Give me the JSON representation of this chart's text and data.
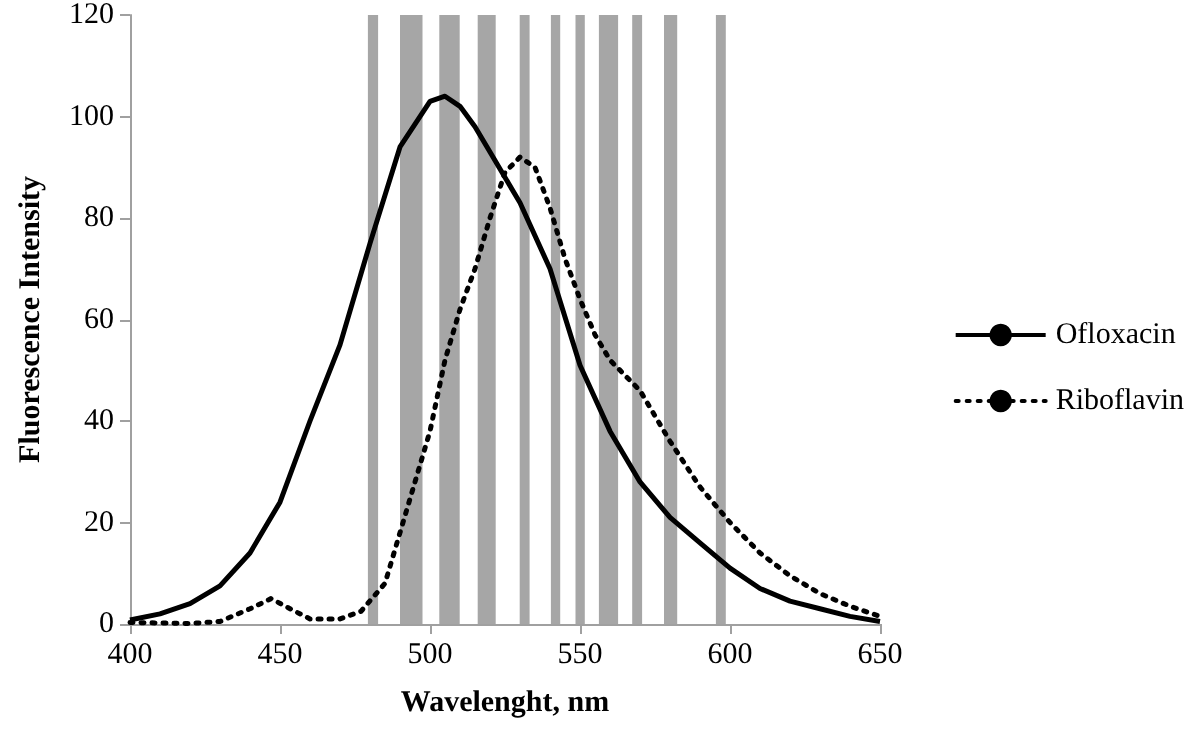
{
  "chart_data": {
    "type": "line",
    "xlabel": "Wavelenght, nm",
    "ylabel": "Fluorescence Intensity",
    "xlim": [
      400,
      650
    ],
    "xticks": [
      400,
      450,
      500,
      550,
      600,
      650
    ],
    "ylim": [
      0,
      120
    ],
    "yticks": [
      0,
      20,
      40,
      60,
      80,
      100,
      120
    ],
    "grid": false,
    "legend": "right",
    "marker": "none",
    "series": [
      {
        "name": "Ofloxacin",
        "color": "#000000",
        "line_style": "solid",
        "x": [
          400,
          410,
          420,
          430,
          440,
          450,
          460,
          470,
          480,
          490,
          500,
          505,
          510,
          515,
          520,
          530,
          540,
          550,
          560,
          570,
          580,
          590,
          600,
          610,
          620,
          630,
          640,
          650
        ],
        "values": [
          0.8,
          2,
          4,
          7.5,
          14,
          24,
          40,
          55,
          75,
          94,
          103,
          104,
          102,
          98,
          93,
          83,
          70,
          51,
          38,
          28,
          21,
          16,
          11,
          7,
          4.5,
          3,
          1.5,
          0.5
        ]
      },
      {
        "name": "Riboflavin",
        "color": "#000000",
        "line_style": "dotted",
        "x": [
          400,
          410,
          420,
          430,
          440,
          447,
          455,
          460,
          470,
          477,
          485,
          490,
          495,
          500,
          505,
          510,
          515,
          520,
          525,
          530,
          535,
          540,
          545,
          550,
          555,
          560,
          570,
          580,
          590,
          600,
          610,
          620,
          630,
          640,
          650
        ],
        "values": [
          0.3,
          0.2,
          0.1,
          0.5,
          3,
          5,
          2.5,
          1,
          1,
          2.5,
          8,
          18,
          28,
          38,
          52,
          62,
          70,
          80,
          89,
          92,
          90,
          82,
          72,
          64,
          57,
          52,
          46,
          36,
          27,
          20,
          14,
          9.5,
          6,
          3.5,
          1.5
        ]
      }
    ],
    "bands": [
      {
        "axis": "x",
        "from": 479.3,
        "to": 482.7,
        "color": "#a6a6a6"
      },
      {
        "axis": "x",
        "from": 490,
        "to": 497.5,
        "color": "#a6a6a6"
      },
      {
        "axis": "x",
        "from": 503.1,
        "to": 509.9,
        "color": "#a6a6a6"
      },
      {
        "axis": "x",
        "from": 515.9,
        "to": 521.9,
        "color": "#a6a6a6"
      },
      {
        "axis": "x",
        "from": 529.9,
        "to": 533.2,
        "color": "#a6a6a6"
      },
      {
        "axis": "x",
        "from": 540.3,
        "to": 543.4,
        "color": "#a6a6a6"
      },
      {
        "axis": "x",
        "from": 548.5,
        "to": 551.6,
        "color": "#a6a6a6"
      },
      {
        "axis": "x",
        "from": 556.3,
        "to": 562.7,
        "color": "#a6a6a6"
      },
      {
        "axis": "x",
        "from": 567.4,
        "to": 570.7,
        "color": "#a6a6a6"
      },
      {
        "axis": "x",
        "from": 578,
        "to": 582.4,
        "color": "#a6a6a6"
      },
      {
        "axis": "x",
        "from": 595.3,
        "to": 598.6,
        "color": "#a6a6a6"
      }
    ]
  }
}
